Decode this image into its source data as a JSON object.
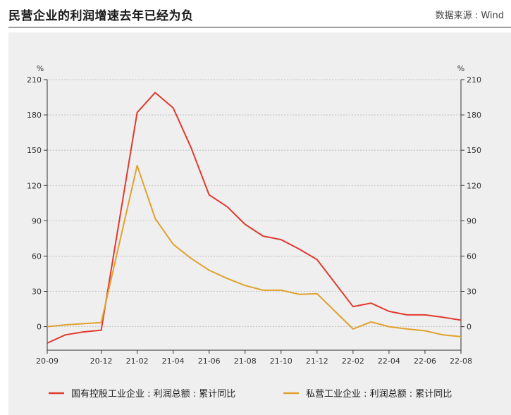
{
  "header": {
    "title": "民营企业的利润增速去年已经为负",
    "source": "数据来源 : Wind"
  },
  "chart_data": {
    "type": "line",
    "title": "民营企业的利润增速去年已经为负",
    "y_unit_left": "%",
    "y_unit_right": "%",
    "ylim": [
      -20,
      210
    ],
    "yticks": [
      0,
      30,
      60,
      90,
      120,
      150,
      180,
      210
    ],
    "x": [
      "20-09",
      "20-10",
      "20-11",
      "20-12",
      "21-02",
      "21-03",
      "21-04",
      "21-05",
      "21-06",
      "21-07",
      "21-08",
      "21-09",
      "21-10",
      "21-11",
      "21-12",
      "22-02",
      "22-03",
      "22-04",
      "22-05",
      "22-06",
      "22-07",
      "22-08"
    ],
    "x_tick_labels": [
      "20-09",
      "20-12",
      "21-02",
      "21-04",
      "21-06",
      "21-08",
      "21-10",
      "21-12",
      "22-02",
      "22-04",
      "22-06",
      "22-08"
    ],
    "series": [
      {
        "name": "国有控股工业企业 : 利润总额 : 累计同比",
        "color": "#e03a2f",
        "values": [
          -14,
          -7,
          -4.5,
          -3,
          182,
          199,
          186,
          152,
          112,
          102,
          87,
          77,
          74,
          66,
          57,
          17,
          20,
          13,
          10,
          10,
          8,
          5.5
        ]
      },
      {
        "name": "私营工业企业 : 利润总额 : 累计同比",
        "color": "#e0a22f",
        "values": [
          0,
          1.5,
          2.5,
          3.5,
          137,
          92,
          70,
          58,
          48,
          41,
          35,
          31,
          31,
          27.5,
          28,
          -2,
          4,
          0,
          -2,
          -3.5,
          -7,
          -8.5
        ]
      }
    ],
    "grid": true,
    "legend_position": "bottom"
  }
}
